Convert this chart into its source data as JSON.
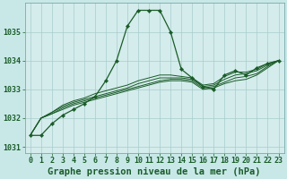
{
  "title": "Graphe pression niveau de la mer (hPa)",
  "bg_color": "#c8e8e8",
  "plot_bg_color": "#d4ecec",
  "line_color": "#1a5c28",
  "grid_color": "#a8cccc",
  "xlim": [
    -0.5,
    23.5
  ],
  "ylim": [
    1030.8,
    1036.0
  ],
  "yticks": [
    1031,
    1032,
    1033,
    1034,
    1035
  ],
  "xticks": [
    0,
    1,
    2,
    3,
    4,
    5,
    6,
    7,
    8,
    9,
    10,
    11,
    12,
    13,
    14,
    15,
    16,
    17,
    18,
    19,
    20,
    21,
    22,
    23
  ],
  "series": [
    [
      1031.4,
      1031.4,
      1031.8,
      1032.1,
      1032.3,
      1032.5,
      1032.75,
      1033.3,
      1034.0,
      1035.2,
      1035.75,
      1035.75,
      1035.75,
      1035.0,
      1033.7,
      1033.4,
      1033.1,
      1033.0,
      1033.5,
      1033.65,
      1033.5,
      1033.75,
      1033.9,
      1034.0
    ],
    [
      1031.4,
      1032.0,
      1032.15,
      1032.3,
      1032.45,
      1032.55,
      1032.65,
      1032.75,
      1032.85,
      1032.95,
      1033.05,
      1033.15,
      1033.25,
      1033.3,
      1033.3,
      1033.25,
      1033.0,
      1033.05,
      1033.2,
      1033.3,
      1033.35,
      1033.5,
      1033.75,
      1034.0
    ],
    [
      1031.4,
      1032.0,
      1032.15,
      1032.35,
      1032.5,
      1032.6,
      1032.7,
      1032.8,
      1032.9,
      1033.0,
      1033.1,
      1033.2,
      1033.3,
      1033.35,
      1033.35,
      1033.3,
      1033.05,
      1033.1,
      1033.25,
      1033.4,
      1033.45,
      1033.55,
      1033.8,
      1034.0
    ],
    [
      1031.4,
      1032.0,
      1032.2,
      1032.4,
      1032.55,
      1032.65,
      1032.75,
      1032.85,
      1032.95,
      1033.05,
      1033.2,
      1033.3,
      1033.4,
      1033.4,
      1033.4,
      1033.35,
      1033.1,
      1033.15,
      1033.35,
      1033.5,
      1033.55,
      1033.65,
      1033.85,
      1034.0
    ],
    [
      1031.4,
      1032.0,
      1032.2,
      1032.45,
      1032.6,
      1032.7,
      1032.85,
      1032.95,
      1033.05,
      1033.15,
      1033.3,
      1033.4,
      1033.5,
      1033.5,
      1033.45,
      1033.4,
      1033.15,
      1033.2,
      1033.45,
      1033.6,
      1033.6,
      1033.7,
      1033.9,
      1034.0
    ]
  ],
  "tick_fontsize": 6,
  "title_fontsize": 7.5
}
